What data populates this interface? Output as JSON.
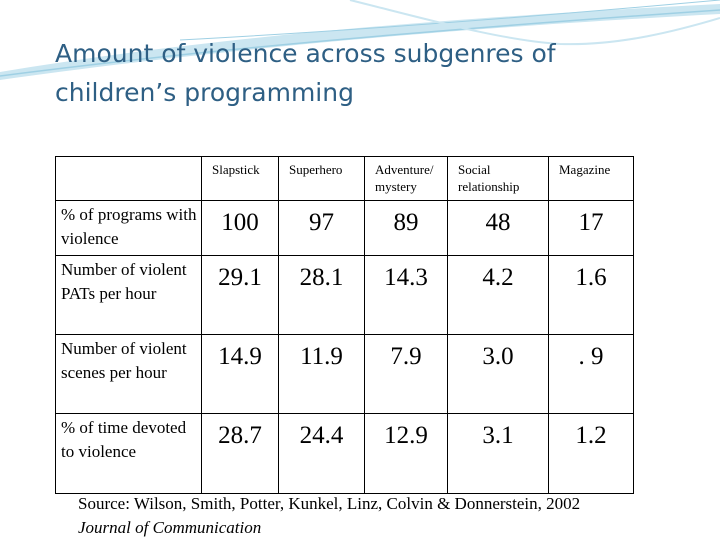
{
  "slide": {
    "title_line1": "Amount of violence across subgenres of",
    "title_line2": "children’s programming"
  },
  "table": {
    "columns": [
      {
        "line1": "Slapstick",
        "line2": ""
      },
      {
        "line1": "Superhero",
        "line2": ""
      },
      {
        "line1": "Adventure/",
        "line2": "mystery"
      },
      {
        "line1": "Social",
        "line2": "relationship"
      },
      {
        "line1": "Magazine",
        "line2": ""
      }
    ],
    "rows": [
      {
        "label": "% of programs with violence",
        "values": [
          "100",
          "97",
          "89",
          "48",
          "17"
        ]
      },
      {
        "label": "Number of violent PATs per hour",
        "values": [
          "29.1",
          "28.1",
          "14.3",
          "4.2",
          "1.6"
        ]
      },
      {
        "label": "Number of violent scenes per hour",
        "values": [
          "14.9",
          "11.9",
          "7.9",
          "3.0",
          ". 9"
        ]
      },
      {
        "label": "% of time devoted to violence",
        "values": [
          "28.7",
          "24.4",
          "12.9",
          "3.1",
          "1.2"
        ]
      }
    ]
  },
  "source": {
    "citation": "Source: Wilson, Smith, Potter, Kunkel, Linz, Colvin & Donnerstein, 2002",
    "journal": "Journal of Communication"
  },
  "colors": {
    "title": "#2e5f84",
    "swoosh": "#9fd0e4",
    "swoosh_light": "#cbe6f1"
  }
}
